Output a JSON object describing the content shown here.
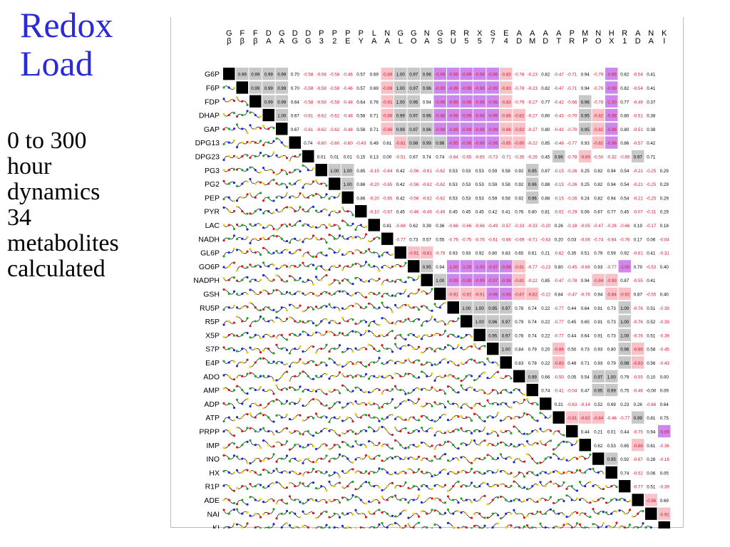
{
  "title": {
    "line1": "Redox",
    "line2": "Load"
  },
  "subtitle": {
    "lines": [
      "0 to 300",
      "hour",
      "dynamics",
      "34",
      "metabolites",
      "calculated"
    ]
  },
  "matrix": {
    "column_headers": [
      [
        "G",
        "β"
      ],
      [
        "F",
        "β"
      ],
      [
        "F",
        "β"
      ],
      [
        "D",
        "A"
      ],
      [
        "G",
        "A"
      ],
      [
        "D",
        "G"
      ],
      [
        "D",
        "G"
      ],
      [
        "P",
        "3"
      ],
      [
        "P",
        "2"
      ],
      [
        "P",
        "E"
      ],
      [
        "P",
        "Y"
      ],
      [
        "L",
        "A"
      ],
      [
        "N",
        "A"
      ],
      [
        "G",
        "L"
      ],
      [
        "G",
        "O"
      ],
      [
        "N",
        "A"
      ],
      [
        "G",
        "S"
      ],
      [
        "R",
        "U"
      ],
      [
        "R",
        "5"
      ],
      [
        "X",
        "5"
      ],
      [
        "S",
        "7"
      ],
      [
        "E",
        "4"
      ],
      [
        "A",
        "D"
      ],
      [
        "A",
        "M"
      ],
      [
        "A",
        "D"
      ],
      [
        "A",
        "T"
      ],
      [
        "P",
        "R"
      ],
      [
        "M",
        "P"
      ],
      [
        "N",
        "O"
      ],
      [
        "H",
        "X"
      ],
      [
        "R",
        "1"
      ],
      [
        "A",
        "D"
      ],
      [
        "N",
        "A"
      ],
      [
        "K",
        "I"
      ]
    ],
    "row_labels": [
      "G6P",
      "F6P",
      "FDP",
      "DHAP",
      "GAP",
      "DPG13",
      "DPG23",
      "PG3",
      "PG2",
      "PEP",
      "PYR",
      "LAC",
      "NADH",
      "GL6P",
      "GO6P",
      "NADPH",
      "GSH",
      "RU5P",
      "R5P",
      "X5P",
      "S7P",
      "E4P",
      "ADO",
      "AMP",
      "ADP",
      "ATP",
      "PRPP",
      "IMP",
      "INO",
      "HX",
      "R1P",
      "ADE",
      "NAI",
      "KI"
    ],
    "rows": [
      [
        "0.99",
        "0.99",
        "0.99",
        "0.99",
        "0.70",
        "-0.58",
        "-0.58",
        "-0.58",
        "-0.46",
        "0.57",
        "0.69",
        "-0.89",
        "1.00",
        "0.97",
        "0.96",
        "-0.99",
        "-0.99",
        "-0.99",
        "-0.98",
        "-0.99",
        "-0.83",
        "-0.78",
        "-0.23",
        "0.82",
        "-0.47",
        "-0.71",
        "0.94",
        "-0.79",
        "-0.99",
        "0.82",
        "-0.54",
        "0.41"
      ],
      [
        "0.99",
        "0.99",
        "0.99",
        "0.70",
        "-0.58",
        "-0.58",
        "-0.58",
        "-0.46",
        "0.57",
        "0.69",
        "-0.89",
        "1.00",
        "0.97",
        "0.96",
        "-0.99",
        "-0.99",
        "-0.99",
        "-0.98",
        "-0.99",
        "-0.83",
        "-0.78",
        "-0.23",
        "0.82",
        "-0.47",
        "-0.71",
        "0.94",
        "-0.79",
        "-0.99",
        "0.82",
        "-0.54",
        "0.41"
      ],
      [
        "0.99",
        "0.99",
        "0.64",
        "-0.58",
        "-0.58",
        "-0.58",
        "-0.48",
        "0.64",
        "0.76",
        "-0.91",
        "1.00",
        "0.95",
        "0.94",
        "-0.99",
        "-0.99",
        "-0.98",
        "-0.96",
        "-0.98",
        "-0.83",
        "-0.79",
        "-0.27",
        "0.77",
        "-0.42",
        "-0.66",
        "0.96",
        "-0.78",
        "-1.00",
        "0.77",
        "-0.49",
        "0.37"
      ],
      [
        "1.00",
        "0.67",
        "-0.61",
        "-0.62",
        "-0.62",
        "-0.48",
        "0.58",
        "0.71",
        "-0.86",
        "0.99",
        "0.97",
        "0.96",
        "-0.98",
        "-0.99",
        "-0.99",
        "-0.98",
        "-0.99",
        "-0.86",
        "-0.82",
        "-0.27",
        "0.80",
        "-0.43",
        "-0.70",
        "0.95",
        "-0.82",
        "-0.98",
        "0.80",
        "-0.51",
        "0.38"
      ],
      [
        "0.67",
        "-0.61",
        "-0.62",
        "-0.62",
        "-0.48",
        "0.58",
        "0.71",
        "-0.86",
        "0.99",
        "0.97",
        "0.96",
        "-0.98",
        "-0.99",
        "-0.99",
        "-0.98",
        "-0.99",
        "-0.86",
        "-0.82",
        "-0.27",
        "0.80",
        "-0.43",
        "-0.70",
        "0.95",
        "-0.82",
        "-0.98",
        "0.80",
        "-0.51",
        "0.38"
      ],
      [
        "0.74",
        "-0.60",
        "-0.60",
        "-0.60",
        "-0.43",
        "0.49",
        "0.61",
        "-0.81",
        "0.98",
        "0.99",
        "0.98",
        "-0.95",
        "-0.96",
        "-0.99",
        "-0.99",
        "-0.85",
        "-0.80",
        "-0.22",
        "0.85",
        "-0.48",
        "-0.77",
        "0.93",
        "-0.82",
        "-0.98",
        "0.86",
        "-0.57",
        "0.42"
      ],
      [
        "0.01",
        "0.01",
        "0.01",
        "0.15",
        "0.13",
        "0.00",
        "-0.51",
        "0.67",
        "0.74",
        "0.74",
        "-0.64",
        "-0.65",
        "-0.65",
        "-0.73",
        "-0.71",
        "-0.35",
        "-0.26",
        "0.45",
        "0.96",
        "-0.78",
        "-0.89",
        "-0.50",
        "-0.32",
        "-0.65",
        "0.97",
        "0.71"
      ],
      [
        "1.00",
        "1.00",
        "0.85",
        "-0.19",
        "-0.64",
        "0.42",
        "-0.56",
        "-0.61",
        "-0.62",
        "0.53",
        "0.53",
        "0.53",
        "0.59",
        "0.58",
        "0.92",
        "0.95",
        "0.87",
        "-0.15",
        "-0.26",
        "0.25",
        "0.82",
        "0.94",
        "0.54",
        "-0.21",
        "-0.25",
        "0.29"
      ],
      [
        "1.00",
        "0.86",
        "-0.20",
        "-0.65",
        "0.42",
        "-0.56",
        "-0.62",
        "-0.62",
        "0.53",
        "0.53",
        "0.53",
        "0.59",
        "0.58",
        "0.92",
        "0.96",
        "0.88",
        "-0.15",
        "-0.26",
        "0.25",
        "0.82",
        "0.94",
        "0.54",
        "-0.21",
        "-0.25",
        "0.29"
      ],
      [
        "0.86",
        "-0.20",
        "-0.65",
        "0.42",
        "-0.56",
        "-0.62",
        "-0.62",
        "0.53",
        "0.53",
        "0.53",
        "0.59",
        "0.58",
        "0.92",
        "0.96",
        "0.88",
        "-0.15",
        "-0.26",
        "0.24",
        "0.82",
        "0.94",
        "0.54",
        "-0.21",
        "-0.25",
        "0.29"
      ],
      [
        "-0.10",
        "-0.67",
        "0.45",
        "-0.46",
        "-0.49",
        "-0.49",
        "0.45",
        "0.45",
        "0.45",
        "0.42",
        "0.41",
        "0.76",
        "0.80",
        "0.81",
        "-0.02",
        "-0.29",
        "0.06",
        "0.67",
        "0.77",
        "0.45",
        "-0.07",
        "-0.31",
        "0.29"
      ],
      [
        "0.81",
        "-0.68",
        "0.62",
        "0.39",
        "0.36",
        "-0.66",
        "-0.66",
        "-0.66",
        "-0.49",
        "-0.57",
        "-0.33",
        "-0.33",
        "-0.20",
        "0.26",
        "-0.18",
        "-0.05",
        "-0.47",
        "-0.26",
        "-0.66",
        "0.19",
        "-0.17",
        "0.18"
      ],
      [
        "-0.77",
        "0.73",
        "0.57",
        "0.55",
        "-0.76",
        "-0.75",
        "-0.76",
        "-0.61",
        "-0.66",
        "-0.69",
        "-0.71",
        "-0.63",
        "0.20",
        "0.03",
        "-0.06",
        "-0.74",
        "-0.64",
        "-0.76",
        "0.17",
        "0.06",
        "-0.04"
      ],
      [
        "-0.91",
        "-0.81",
        "-0.79",
        "0.93",
        "0.93",
        "0.92",
        "0.80",
        "0.83",
        "0.65",
        "0.61",
        "0.21",
        "-0.62",
        "0.35",
        "0.51",
        "0.79",
        "0.59",
        "0.92",
        "-0.61",
        "0.41",
        "-0.31"
      ],
      [
        "0.95",
        "0.94",
        "-1.00",
        "-1.00",
        "-1.00",
        "-0.97",
        "-0.98",
        "-0.81",
        "-0.77",
        "-0.23",
        "0.80",
        "-0.45",
        "-0.66",
        "0.93",
        "-0.77",
        "-1.00",
        "0.79",
        "-0.53",
        "0.40"
      ],
      [
        "1.00",
        "-0.99",
        "-0.99",
        "-0.99",
        "-0.97",
        "-0.98",
        "-0.81",
        "-0.22",
        "0.85",
        "-0.47",
        "-0.78",
        "0.94",
        "-0.84",
        "-0.93",
        "0.87",
        "-0.55",
        "0.41"
      ],
      [
        "-0.91",
        "-0.92",
        "-0.91",
        "-0.96",
        "-0.95",
        "-0.87",
        "-0.82",
        "-0.22",
        "0.84",
        "-0.47",
        "-0.76",
        "0.94",
        "-0.84",
        "-0.92",
        "0.87",
        "-0.55",
        "0.40"
      ],
      [
        "1.00",
        "1.00",
        "0.95",
        "0.97",
        "0.78",
        "0.74",
        "0.22",
        "-0.77",
        "0.44",
        "0.64",
        "0.91",
        "0.73",
        "1.00",
        "-0.76",
        "0.51",
        "-0.39"
      ],
      [
        "1.00",
        "0.96",
        "0.97",
        "0.79",
        "0.74",
        "0.22",
        "-0.77",
        "0.45",
        "0.65",
        "0.91",
        "0.73",
        "1.00",
        "-0.76",
        "0.52",
        "-0.39"
      ],
      [
        "0.95",
        "0.97",
        "0.78",
        "0.74",
        "0.22",
        "-0.77",
        "0.44",
        "0.64",
        "0.91",
        "0.73",
        "1.00",
        "-0.76",
        "0.51",
        "-0.39"
      ],
      [
        "1.00",
        "0.84",
        "0.79",
        "0.20",
        "-0.86",
        "0.50",
        "0.73",
        "0.93",
        "0.80",
        "0.96",
        "-0.86",
        "0.58",
        "-0.45"
      ],
      [
        "0.83",
        "0.78",
        "0.22",
        "-0.83",
        "0.48",
        "0.71",
        "0.93",
        "0.79",
        "0.98",
        "-0.83",
        "0.56",
        "-0.43"
      ],
      [
        "0.99",
        "0.66",
        "-0.50",
        "0.05",
        "0.54",
        "0.97",
        "1.00",
        "0.79",
        "-0.55",
        "0.10",
        "0.00"
      ],
      [
        "0.74",
        "-0.41",
        "-0.04",
        "0.47",
        "0.95",
        "0.99",
        "0.75",
        "-0.46",
        "-0.00",
        "0.09"
      ],
      [
        "0.31",
        "-0.63",
        "-0.14",
        "0.52",
        "0.69",
        "0.23",
        "0.26",
        "-0.66",
        "0.64"
      ],
      [
        "-0.81",
        "-0.82",
        "-0.84",
        "-0.46",
        "-0.77",
        "0.99",
        "0.81",
        "0.75"
      ],
      [
        "0.44",
        "0.21",
        "0.01",
        "0.44",
        "-0.75",
        "0.94",
        "-0.99"
      ],
      [
        "0.62",
        "0.53",
        "0.65",
        "-0.86",
        "0.61",
        "-0.36"
      ],
      [
        "0.95",
        "0.92",
        "-0.67",
        "0.28",
        "-0.16"
      ],
      [
        "0.74",
        "-0.52",
        "0.06",
        "0.05"
      ],
      [
        "-0.77",
        "0.51",
        "-0.39"
      ],
      [
        "-0.86",
        "0.69"
      ],
      [
        "-0.91"
      ],
      []
    ],
    "colors": {
      "positive_text": "#000000",
      "negative_text": "#e0142c",
      "diagonal": "#000000",
      "cell_gray": "#c8c8c8",
      "cell_pink": "#f7c3c8",
      "cell_purple": "#cc88ee",
      "curve": "#000000",
      "marker_red": "#e01818",
      "marker_green": "#1aa81a",
      "marker_blue": "#1a2ad8",
      "marker_yellow": "#f0d018"
    }
  }
}
